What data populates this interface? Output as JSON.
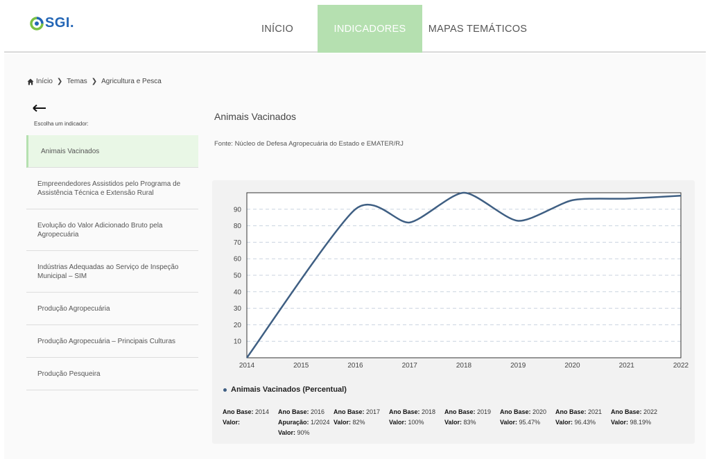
{
  "logo": {
    "text": "SGI"
  },
  "nav": {
    "items": [
      "INÍCIO",
      "INDICADORES",
      "MAPAS TEMÁTICOS"
    ],
    "active": 1,
    "active_color": "#b5e0b0"
  },
  "breadcrumb": [
    "Início",
    "Temas",
    "Agricultura e Pesca"
  ],
  "sidebar": {
    "prompt": "Escolha um indicador:",
    "items": [
      "Animais Vacinados",
      "Empreendedores Assistidos pelo Programa de Assistência Técnica e Extensão Rural",
      "Evolução do Valor Adicionado Bruto pela Agropecuária",
      "Indústrias Adequadas ao Serviço de Inspeção Municipal – SIM",
      "Produção Agropecuária",
      "Produção Agropecuária – Principais Culturas",
      "Produção Pesqueira"
    ],
    "active": 0
  },
  "indicator": {
    "title": "Animais Vacinados",
    "fonte": "Fonte: Núcleo de Defesa Agropecuária do Estado e EMATER/RJ"
  },
  "chart_data": {
    "type": "line",
    "x": [
      2014,
      2016,
      2017,
      2018,
      2019,
      2020,
      2021,
      2022
    ],
    "x_ticks": [
      "2014",
      "2015",
      "2016",
      "2017",
      "2018",
      "2019",
      "2020",
      "2021",
      "2022"
    ],
    "y_ticks": [
      "10",
      "20",
      "30",
      "40",
      "50",
      "60",
      "70",
      "80",
      "90"
    ],
    "series": [
      {
        "name": "Animais Vacinados (Percentual)",
        "values": [
          0,
          90,
          82,
          100,
          83,
          95.47,
          96.43,
          98.19
        ],
        "color": "#3f5f83"
      }
    ],
    "xlim": [
      2014,
      2022
    ],
    "ylim": [
      0,
      100
    ],
    "grid": true,
    "legend": "bottom-left"
  },
  "stats": [
    {
      "ano_label": "Ano Base:",
      "ano": "2014",
      "lines": [
        [
          "Valor:",
          ""
        ]
      ]
    },
    {
      "ano_label": "Ano Base:",
      "ano": "2016",
      "lines": [
        [
          "Apuração:",
          "1/2024"
        ],
        [
          "Valor:",
          "90%"
        ]
      ]
    },
    {
      "ano_label": "Ano Base:",
      "ano": "2017",
      "lines": [
        [
          "Valor:",
          "82%"
        ]
      ]
    },
    {
      "ano_label": "Ano Base:",
      "ano": "2018",
      "lines": [
        [
          "Valor:",
          "100%"
        ]
      ]
    },
    {
      "ano_label": "Ano Base:",
      "ano": "2019",
      "lines": [
        [
          "Valor:",
          "83%"
        ]
      ]
    },
    {
      "ano_label": "Ano Base:",
      "ano": "2020",
      "lines": [
        [
          "Valor:",
          "95.47%"
        ]
      ]
    },
    {
      "ano_label": "Ano Base:",
      "ano": "2021",
      "lines": [
        [
          "Valor:",
          "96.43%"
        ]
      ]
    },
    {
      "ano_label": "Ano Base:",
      "ano": "2022",
      "lines": [
        [
          "Valor:",
          "98.19%"
        ]
      ]
    }
  ]
}
